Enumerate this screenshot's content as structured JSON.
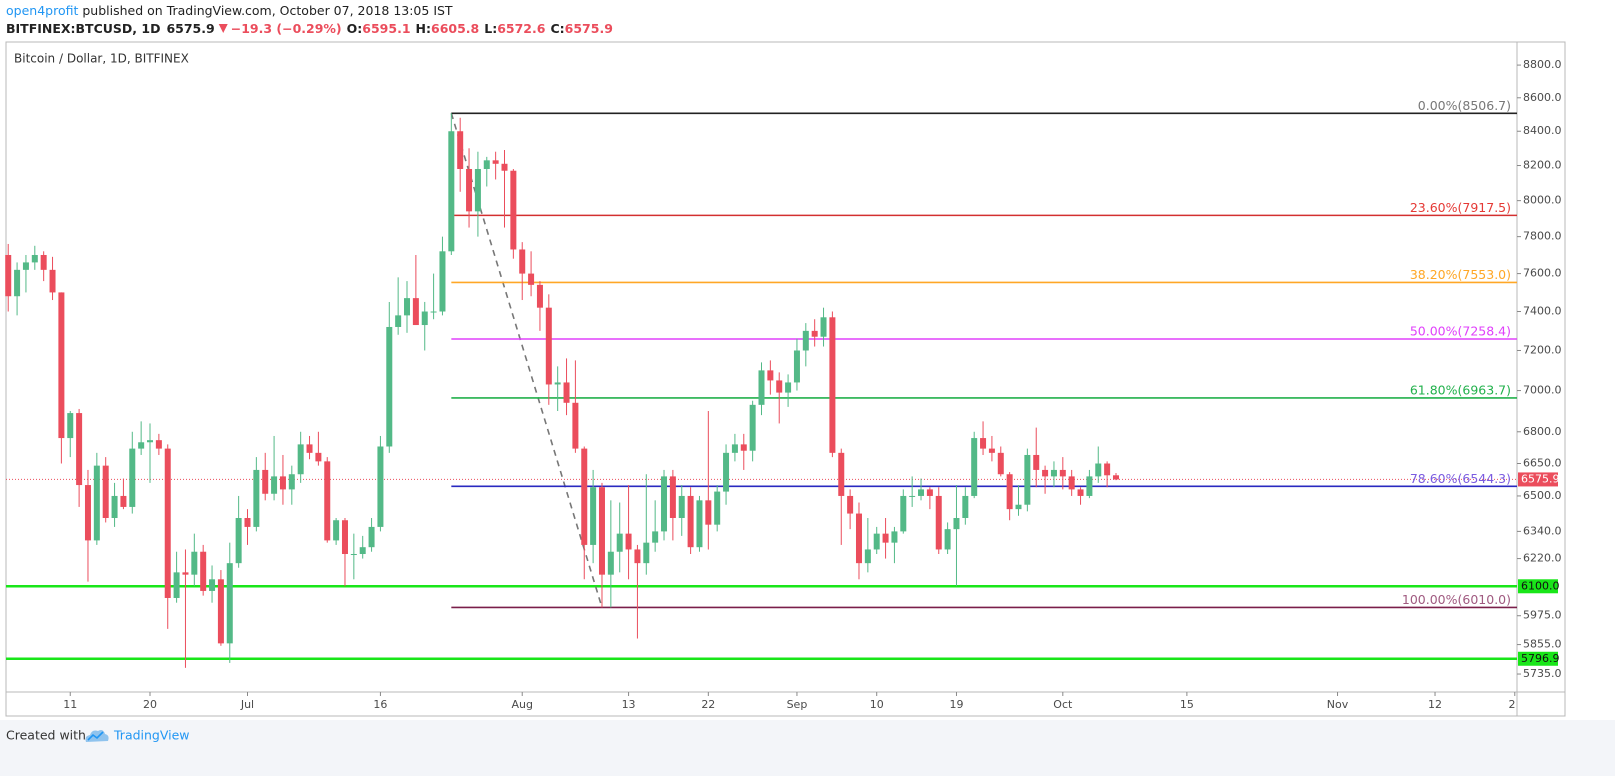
{
  "header": {
    "author": "open4profit",
    "published": "published on TradingView.com, October 07, 2018 13:05 IST",
    "symbol": "BITFINEX:BTCUSD, 1D",
    "last": "6575.9",
    "change": "−19.3 (−0.29%)",
    "ohlc": [
      {
        "key": "O:",
        "value": "6595.1"
      },
      {
        "key": "H:",
        "value": "6605.8"
      },
      {
        "key": "L:",
        "value": "6572.6"
      },
      {
        "key": "C:",
        "value": "6575.9"
      }
    ]
  },
  "chart_data": {
    "type": "candlestick",
    "title": "Bitcoin / Dollar, 1D, BITFINEX",
    "log_scale": true,
    "grid": false,
    "up_color": "#53b987",
    "down_color": "#eb4d5c",
    "x": [
      "Jun 4",
      "Jun 5",
      "Jun 6",
      "Jun 7",
      "Jun 8",
      "Jun 9",
      "Jun 10",
      "Jun 11",
      "Jun 12",
      "Jun 13",
      "Jun 14",
      "Jun 15",
      "Jun 16",
      "Jun 17",
      "Jun 18",
      "Jun 19",
      "Jun 20",
      "Jun 21",
      "Jun 22",
      "Jun 23",
      "Jun 24",
      "Jun 25",
      "Jun 26",
      "Jun 27",
      "Jun 28",
      "Jun 29",
      "Jun 30",
      "Jul 1",
      "Jul 2",
      "Jul 3",
      "Jul 4",
      "Jul 5",
      "Jul 6",
      "Jul 7",
      "Jul 8",
      "Jul 9",
      "Jul 10",
      "Jul 11",
      "Jul 12",
      "Jul 13",
      "Jul 14",
      "Jul 15",
      "Jul 16",
      "Jul 17",
      "Jul 18",
      "Jul 19",
      "Jul 20",
      "Jul 21",
      "Jul 22",
      "Jul 23",
      "Jul 24",
      "Jul 25",
      "Jul 26",
      "Jul 27",
      "Jul 28",
      "Jul 29",
      "Jul 30",
      "Jul 31",
      "Aug 1",
      "Aug 2",
      "Aug 3",
      "Aug 4",
      "Aug 5",
      "Aug 6",
      "Aug 7",
      "Aug 8",
      "Aug 9",
      "Aug 10",
      "Aug 11",
      "Aug 12",
      "Aug 13",
      "Aug 14",
      "Aug 15",
      "Aug 16",
      "Aug 17",
      "Aug 18",
      "Aug 19",
      "Aug 20",
      "Aug 21",
      "Aug 22",
      "Aug 23",
      "Aug 24",
      "Aug 25",
      "Aug 26",
      "Aug 27",
      "Aug 28",
      "Aug 29",
      "Aug 30",
      "Aug 31",
      "Sep 1",
      "Sep 2",
      "Sep 3",
      "Sep 4",
      "Sep 5",
      "Sep 6",
      "Sep 7",
      "Sep 8",
      "Sep 9",
      "Sep 10",
      "Sep 11",
      "Sep 12",
      "Sep 13",
      "Sep 14",
      "Sep 15",
      "Sep 16",
      "Sep 17",
      "Sep 18",
      "Sep 19",
      "Sep 20",
      "Sep 21",
      "Sep 22",
      "Sep 23",
      "Sep 24",
      "Sep 25",
      "Sep 26",
      "Sep 27",
      "Sep 28",
      "Sep 29",
      "Sep 30",
      "Oct 1",
      "Oct 2",
      "Oct 3",
      "Oct 4",
      "Oct 5",
      "Oct 6",
      "Oct 7"
    ],
    "open": [
      7700,
      7480,
      7620,
      7660,
      7700,
      7620,
      7500,
      6770,
      6890,
      6550,
      6300,
      6640,
      6400,
      6500,
      6450,
      6720,
      6750,
      6760,
      6720,
      6050,
      6160,
      6150,
      6250,
      6080,
      6130,
      5860,
      6200,
      6400,
      6360,
      6620,
      6510,
      6590,
      6530,
      6600,
      6740,
      6700,
      6660,
      6300,
      6390,
      6240,
      6240,
      6270,
      6360,
      6730,
      7320,
      7380,
      7470,
      7330,
      7400,
      7400,
      7720,
      8400,
      8180,
      7940,
      8180,
      8230,
      8210,
      8170,
      7730,
      7600,
      7540,
      7420,
      7030,
      7040,
      6940,
      6720,
      6280,
      6540,
      6150,
      6250,
      6330,
      6260,
      6200,
      6290,
      6340,
      6590,
      6400,
      6500,
      6270,
      6480,
      6370,
      6520,
      6700,
      6740,
      6710,
      6930,
      7100,
      7050,
      6990,
      7040,
      7200,
      7300,
      7270,
      7370,
      6700,
      6500,
      6420,
      6200,
      6260,
      6330,
      6290,
      6340,
      6500,
      6500,
      6530,
      6500,
      6260,
      6350,
      6400,
      6500,
      6770,
      6720,
      6700,
      6600,
      6440,
      6460,
      6690,
      6620,
      6590,
      6620,
      6590,
      6530,
      6500,
      6590,
      6650,
      6595.1
    ],
    "high": [
      7760,
      7660,
      7700,
      7750,
      7720,
      7690,
      7500,
      6900,
      6910,
      6620,
      6700,
      6680,
      6560,
      6580,
      6800,
      6850,
      6840,
      6790,
      6740,
      6250,
      6260,
      6330,
      6280,
      6190,
      6170,
      6290,
      6500,
      6440,
      6680,
      6700,
      6780,
      6690,
      6640,
      6800,
      6780,
      6800,
      6680,
      6400,
      6400,
      6330,
      6320,
      6400,
      6780,
      7450,
      7580,
      7560,
      7700,
      7450,
      7600,
      7800,
      8506.7,
      8480,
      8300,
      8280,
      8250,
      8280,
      8290,
      8180,
      7770,
      7720,
      7560,
      7490,
      7120,
      7160,
      7150,
      6730,
      6620,
      6560,
      6480,
      6470,
      6550,
      6280,
      6600,
      6480,
      6620,
      6620,
      6550,
      6540,
      6500,
      6900,
      6550,
      6740,
      6790,
      6790,
      6950,
      7140,
      7150,
      7090,
      7080,
      7260,
      7340,
      7360,
      7420,
      7400,
      6720,
      6530,
      6470,
      6400,
      6360,
      6400,
      6360,
      6530,
      6590,
      6580,
      6540,
      6540,
      6380,
      6550,
      6540,
      6800,
      6850,
      6780,
      6730,
      6610,
      6550,
      6720,
      6820,
      6640,
      6660,
      6680,
      6620,
      6540,
      6620,
      6730,
      6660,
      6605.8
    ],
    "low": [
      7400,
      7380,
      7500,
      7620,
      7560,
      7460,
      6650,
      6680,
      6450,
      6120,
      6280,
      6380,
      6360,
      6440,
      6420,
      6690,
      6560,
      6690,
      5920,
      6030,
      5760,
      6100,
      6060,
      6030,
      5850,
      5780,
      6180,
      6280,
      6340,
      6480,
      6480,
      6460,
      6460,
      6560,
      6670,
      6640,
      6290,
      6280,
      6100,
      6130,
      6220,
      6250,
      6340,
      6700,
      7280,
      7290,
      7330,
      7200,
      7360,
      7380,
      7700,
      8050,
      7850,
      7800,
      8080,
      8120,
      7850,
      7680,
      7460,
      7480,
      7300,
      6930,
      6900,
      6880,
      6700,
      6130,
      6200,
      6010,
      6010,
      6160,
      6130,
      5880,
      6150,
      6250,
      6300,
      6300,
      6320,
      6240,
      6250,
      6260,
      6340,
      6460,
      6660,
      6620,
      6660,
      6880,
      6980,
      6840,
      6920,
      7000,
      7120,
      7220,
      7220,
      6680,
      6280,
      6350,
      6130,
      6160,
      6240,
      6220,
      6200,
      6330,
      6450,
      6480,
      6440,
      6240,
      6240,
      6100,
      6370,
      6490,
      6690,
      6660,
      6590,
      6390,
      6410,
      6430,
      6540,
      6510,
      6540,
      6530,
      6500,
      6460,
      6490,
      6560,
      6540,
      6572.6
    ],
    "close": [
      7480,
      7620,
      7660,
      7700,
      7620,
      7500,
      6770,
      6890,
      6550,
      6300,
      6640,
      6400,
      6500,
      6450,
      6720,
      6750,
      6760,
      6720,
      6050,
      6160,
      6150,
      6250,
      6080,
      6130,
      5860,
      6200,
      6400,
      6360,
      6620,
      6510,
      6590,
      6530,
      6600,
      6740,
      6700,
      6660,
      6300,
      6390,
      6240,
      6240,
      6270,
      6360,
      6730,
      7320,
      7380,
      7470,
      7330,
      7400,
      7400,
      7720,
      8400,
      8180,
      7940,
      8180,
      8230,
      8210,
      8170,
      7730,
      7600,
      7540,
      7420,
      7030,
      7040,
      6940,
      6720,
      6280,
      6540,
      6150,
      6250,
      6330,
      6260,
      6200,
      6290,
      6340,
      6590,
      6400,
      6500,
      6270,
      6480,
      6370,
      6520,
      6700,
      6740,
      6710,
      6930,
      7100,
      7050,
      6990,
      7040,
      7200,
      7300,
      7270,
      7370,
      6700,
      6500,
      6420,
      6200,
      6260,
      6330,
      6290,
      6340,
      6500,
      6500,
      6530,
      6500,
      6260,
      6350,
      6400,
      6500,
      6770,
      6720,
      6700,
      6600,
      6440,
      6460,
      6690,
      6620,
      6590,
      6620,
      6590,
      6530,
      6500,
      6590,
      6650,
      6595.1,
      6575.9
    ],
    "xlim": [
      "Jun 4",
      "Nov 21"
    ],
    "xticks": [
      {
        "value": "Jun 11",
        "label": "11"
      },
      {
        "value": "Jun 20",
        "label": "20"
      },
      {
        "value": "Jul 1",
        "label": "Jul"
      },
      {
        "value": "Jul 16",
        "label": "16"
      },
      {
        "value": "Aug 1",
        "label": "Aug"
      },
      {
        "value": "Aug 13",
        "label": "13"
      },
      {
        "value": "Aug 22",
        "label": "22"
      },
      {
        "value": "Sep 1",
        "label": "Sep"
      },
      {
        "value": "Sep 10",
        "label": "10"
      },
      {
        "value": "Sep 19",
        "label": "19"
      },
      {
        "value": "Oct 1",
        "label": "Oct"
      },
      {
        "value": "Oct 15",
        "label": "15"
      },
      {
        "value": "Nov 1",
        "label": "Nov"
      },
      {
        "value": "Nov 12",
        "label": "12"
      },
      {
        "value": "Nov 21",
        "label": "2"
      }
    ],
    "ylim": [
      5663,
      8944
    ],
    "yticks": [
      {
        "value": 8800,
        "label": "8800.0"
      },
      {
        "value": 8600,
        "label": "8600.0"
      },
      {
        "value": 8400,
        "label": "8400.0"
      },
      {
        "value": 8200,
        "label": "8200.0"
      },
      {
        "value": 8000,
        "label": "8000.0"
      },
      {
        "value": 7800,
        "label": "7800.0"
      },
      {
        "value": 7600,
        "label": "7600.0"
      },
      {
        "value": 7400,
        "label": "7400.0"
      },
      {
        "value": 7200,
        "label": "7200.0"
      },
      {
        "value": 7000,
        "label": "7000.0"
      },
      {
        "value": 6800,
        "label": "6800.0"
      },
      {
        "value": 6650,
        "label": "6650.0"
      },
      {
        "value": 6500,
        "label": "6500.0"
      },
      {
        "value": 6340,
        "label": "6340.0"
      },
      {
        "value": 6220,
        "label": "6220.0"
      },
      {
        "value": 5975,
        "label": "5975.0"
      },
      {
        "value": 5855,
        "label": "5855.0"
      },
      {
        "value": 5735,
        "label": "5735.0"
      }
    ],
    "fib_start": "Jul 24",
    "fib_trend_end": "Aug 10",
    "fib_levels": [
      {
        "value": 8506.7,
        "label": "0.00%(8506.7)",
        "color": "#222222",
        "label_color": "#777777"
      },
      {
        "value": 7917.5,
        "label": "23.60%(7917.5)",
        "color": "#d32f2f",
        "label_color": "#e53935"
      },
      {
        "value": 7553.0,
        "label": "38.20%(7553.0)",
        "color": "#ffa726",
        "label_color": "#ffa726"
      },
      {
        "value": 7258.4,
        "label": "50.00%(7258.4)",
        "color": "#e040fb",
        "label_color": "#e040fb"
      },
      {
        "value": 6963.7,
        "label": "61.80%(6963.7)",
        "color": "#22b14c",
        "label_color": "#22b14c"
      },
      {
        "value": 6544.3,
        "label": "78.60%(6544.3)",
        "color": "#2929c0",
        "label_color": "#7b5ce0"
      },
      {
        "value": 6010.0,
        "label": "100.00%(6010.0)",
        "color": "#7a1f4a",
        "label_color": "#a05a80"
      }
    ],
    "horizontal_lines": [
      {
        "value": 6100.0,
        "label": "6100.0",
        "color": "#19e619"
      },
      {
        "value": 5796.9,
        "label": "5796.9",
        "color": "#19e619"
      }
    ],
    "last_price": {
      "value": 6575.9,
      "label": "6575.9",
      "color": "#eb4d5c"
    }
  },
  "footer": {
    "created": "Created with",
    "brand": "TradingView"
  }
}
